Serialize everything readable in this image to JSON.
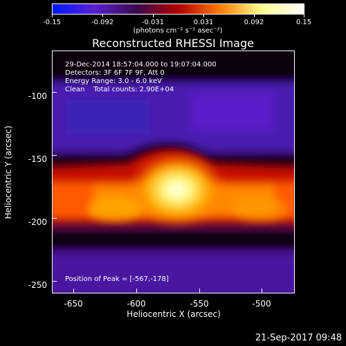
{
  "colorbar": {
    "ticks": [
      "-0.15",
      "-0.092",
      "-0.031",
      "0.031",
      "0.092",
      "0.15"
    ],
    "units": "(photons cm⁻² s⁻¹ asec⁻²)",
    "colors": [
      "#0018ff",
      "#5a1fd0",
      "#3a0a50",
      "#b00000",
      "#ff7a00",
      "#ffff90",
      "#ffffff"
    ]
  },
  "title": "Reconstructed RHESSI Image",
  "info": {
    "line1": "29-Dec-2014 18:57:04.000 to 19:07:04.000",
    "line2": "Detectors: 3F 6F 7F 9F, Att 0",
    "line3": "Energy Range: 3.0 - 6.0 keV",
    "line4": "Clean    Total counts: 2.90E+04",
    "peak": "Position of Peak = [-567,-178]"
  },
  "axes": {
    "xlabel": "Heliocentric X (arcsec)",
    "ylabel": "Heliocentric Y (arcsec)",
    "xticks": [
      "-650",
      "-600",
      "-550",
      "-500"
    ],
    "yticks": [
      "-100",
      "-150",
      "-200",
      "-250"
    ]
  },
  "timestamp": "21-Sep-2017 09:48"
}
